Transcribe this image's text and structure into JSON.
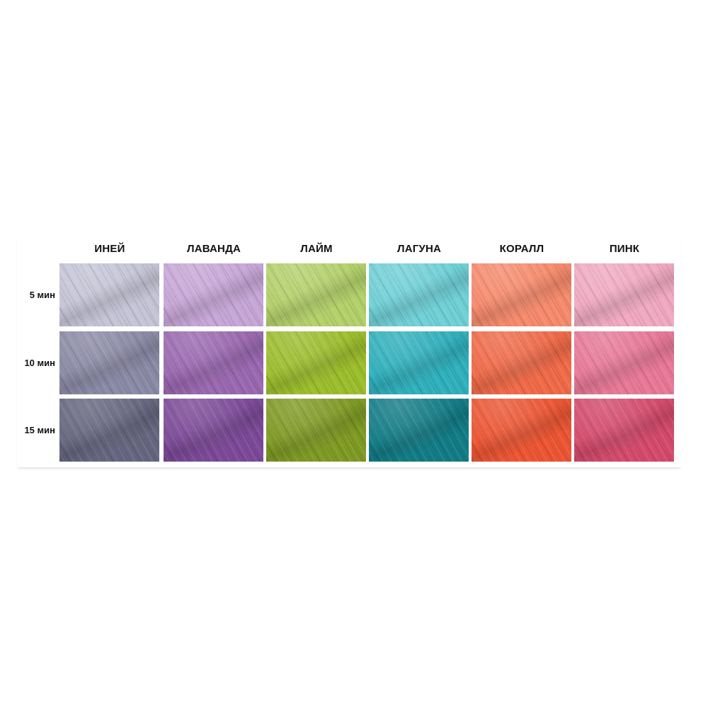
{
  "columns": [
    "ИНЕЙ",
    "ЛАВАНДА",
    "ЛАЙМ",
    "ЛАГУНА",
    "КОРАЛЛ",
    "ПИНК"
  ],
  "rows": [
    "5 мин",
    "10 мин",
    "15 мин"
  ],
  "swatch_colors": [
    [
      "#c4c4d6",
      "#c6a6d6",
      "#b3d06a",
      "#6fd0d6",
      "#f68a6c",
      "#f0a9c1"
    ],
    [
      "#8b8aa6",
      "#9a68b0",
      "#9cbd2c",
      "#2fb0bc",
      "#f06a48",
      "#e87898"
    ],
    [
      "#66667f",
      "#7c4a98",
      "#7f9a24",
      "#127c86",
      "#ec5533",
      "#d44a6c"
    ]
  ]
}
